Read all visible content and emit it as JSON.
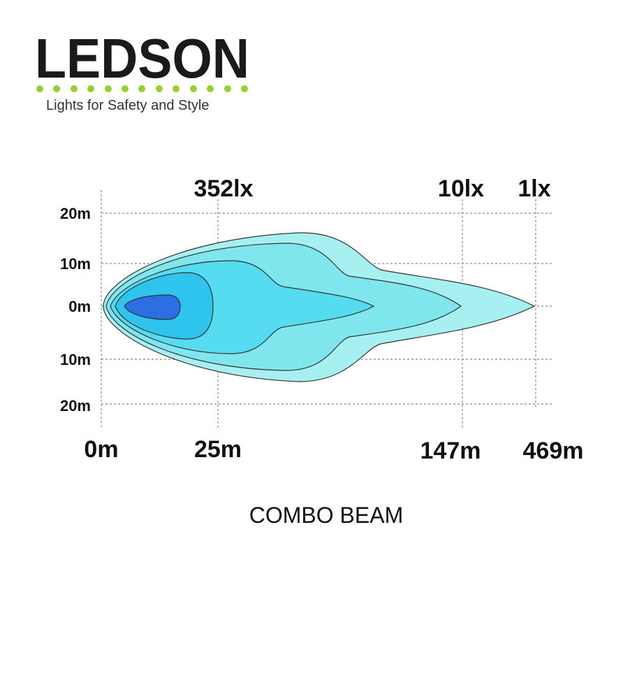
{
  "header": {
    "logo": "LEDSON",
    "tagline": "Lights for Safety and Style"
  },
  "diagram": {
    "lux_labels": [
      "352lx",
      "10lx",
      "1lx"
    ],
    "y_labels": [
      "20m",
      "10m",
      "0m",
      "10m",
      "20m"
    ],
    "x_labels": [
      "0m",
      "25m",
      "147m",
      "469m"
    ],
    "caption": "COMBO BEAM"
  }
}
